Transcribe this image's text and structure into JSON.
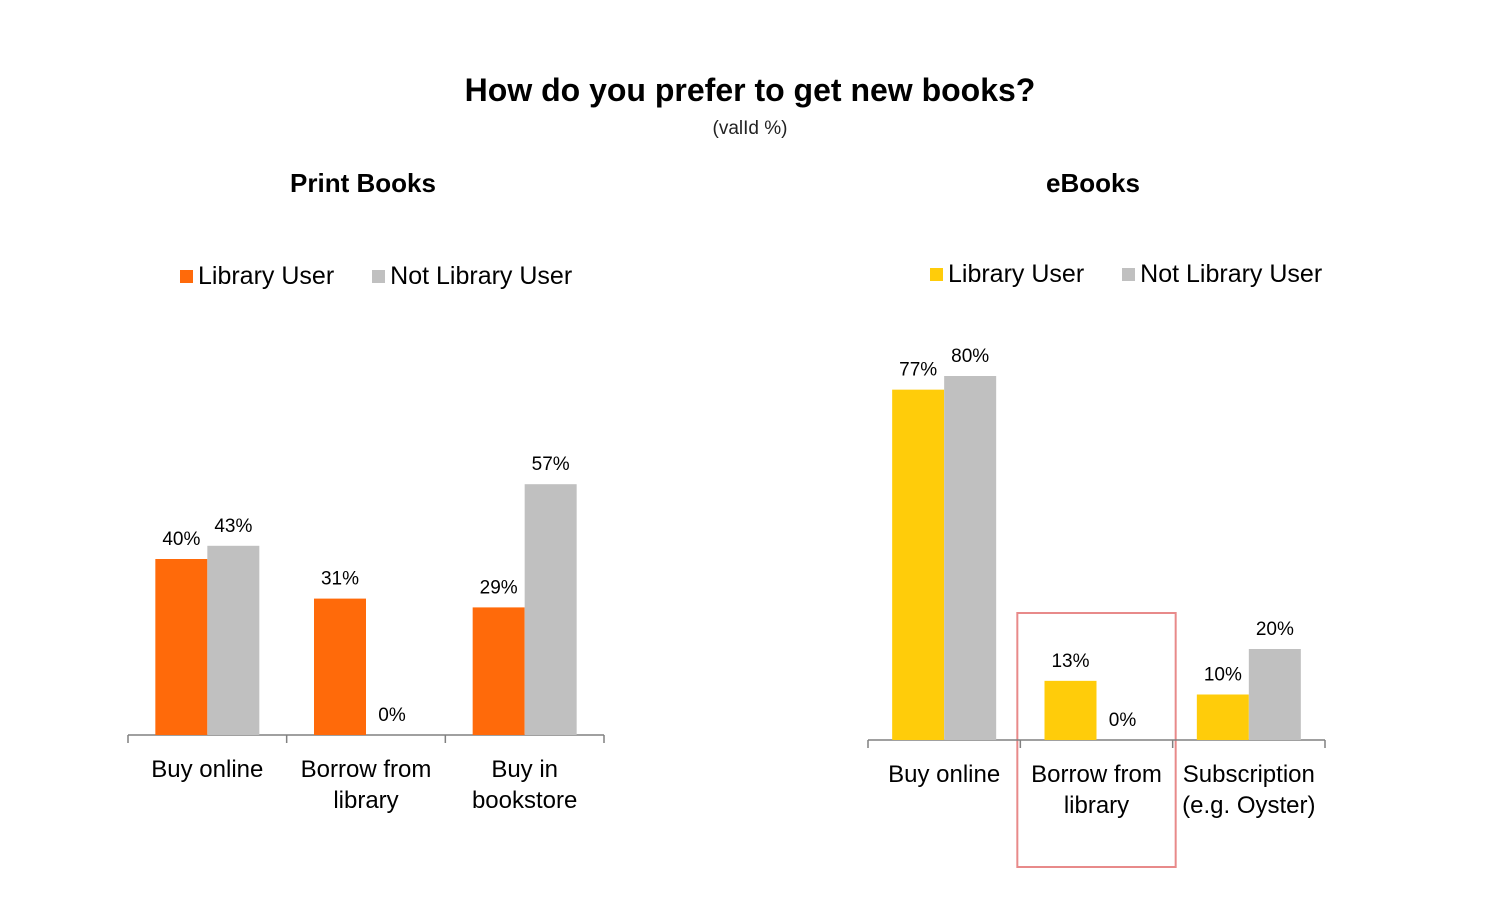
{
  "title": "How do you prefer to get new books?",
  "subtitle": "(valId %)",
  "colors": {
    "print_library": "#FF6A0A",
    "ebook_library": "#FFCC0A",
    "not_library": "#C0C0C0",
    "highlight_box": "#E88A8A",
    "axis": "#808080"
  },
  "chart_data": [
    {
      "type": "bar",
      "title": "Print Books",
      "categories": [
        [
          "Buy online"
        ],
        [
          "Borrow from",
          "library"
        ],
        [
          "Buy in",
          "bookstore"
        ]
      ],
      "series": [
        {
          "name": "Library User",
          "values": [
            40,
            31,
            29
          ]
        },
        {
          "name": "Not Library User",
          "values": [
            43,
            0,
            57
          ]
        }
      ],
      "value_labels": [
        [
          "40%",
          "31%",
          "29%"
        ],
        [
          "43%",
          "0%",
          "57%"
        ]
      ],
      "unit": "%",
      "legend": "top",
      "grid": false
    },
    {
      "type": "bar",
      "title": "eBooks",
      "categories": [
        [
          "Buy online"
        ],
        [
          "Borrow from",
          "library"
        ],
        [
          "Subscription",
          "(e.g. Oyster)"
        ]
      ],
      "series": [
        {
          "name": "Library User",
          "values": [
            77,
            13,
            10
          ]
        },
        {
          "name": "Not Library User",
          "values": [
            80,
            0,
            20
          ]
        }
      ],
      "value_labels": [
        [
          "77%",
          "13%",
          "10%"
        ],
        [
          "80%",
          "0%",
          "20%"
        ]
      ],
      "unit": "%",
      "legend": "top",
      "grid": false,
      "highlighted_category": "Borrow from library"
    }
  ]
}
